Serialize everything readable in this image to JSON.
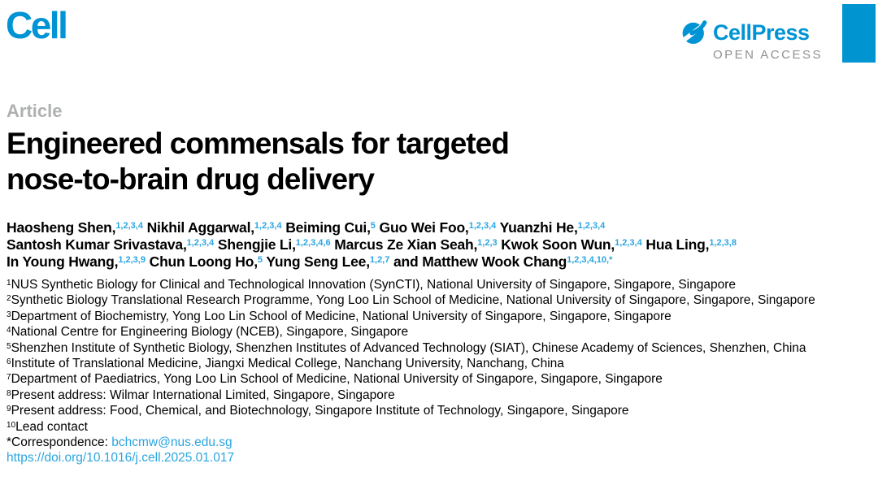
{
  "header": {
    "journal_logo": "Cell",
    "publisher_logo": "CellPress",
    "open_access_label": "OPEN ACCESS"
  },
  "article": {
    "label": "Article",
    "title_line1": "Engineered commensals for targeted",
    "title_line2": "nose-to-brain drug delivery"
  },
  "authors": {
    "lines": [
      [
        {
          "name": "Haosheng Shen,",
          "sup": "1,2,3,4"
        },
        {
          "name": " Nikhil Aggarwal,",
          "sup": "1,2,3,4"
        },
        {
          "name": " Beiming Cui,",
          "sup": "5"
        },
        {
          "name": " Guo Wei Foo,",
          "sup": "1,2,3,4"
        },
        {
          "name": " Yuanzhi He,",
          "sup": "1,2,3,4"
        }
      ],
      [
        {
          "name": "Santosh Kumar Srivastava,",
          "sup": "1,2,3,4"
        },
        {
          "name": " Shengjie Li,",
          "sup": "1,2,3,4,6"
        },
        {
          "name": " Marcus Ze Xian Seah,",
          "sup": "1,2,3"
        },
        {
          "name": " Kwok Soon Wun,",
          "sup": "1,2,3,4"
        },
        {
          "name": " Hua Ling,",
          "sup": "1,2,3,8"
        }
      ],
      [
        {
          "name": "In Young Hwang,",
          "sup": "1,2,3,9"
        },
        {
          "name": " Chun Loong Ho,",
          "sup": "5"
        },
        {
          "name": " Yung Seng Lee,",
          "sup": "1,2,7"
        },
        {
          "name": " and Matthew Wook Chang",
          "sup": "1,2,3,4,10,*"
        }
      ]
    ]
  },
  "affiliations": [
    {
      "sup": "1",
      "text": "NUS Synthetic Biology for Clinical and Technological Innovation (SynCTI), National University of Singapore, Singapore, Singapore"
    },
    {
      "sup": "2",
      "text": "Synthetic Biology Translational Research Programme, Yong Loo Lin School of Medicine, National University of Singapore, Singapore, Singapore"
    },
    {
      "sup": "3",
      "text": "Department of Biochemistry, Yong Loo Lin School of Medicine, National University of Singapore, Singapore, Singapore"
    },
    {
      "sup": "4",
      "text": "National Centre for Engineering Biology (NCEB), Singapore, Singapore"
    },
    {
      "sup": "5",
      "text": "Shenzhen Institute of Synthetic Biology, Shenzhen Institutes of Advanced Technology (SIAT), Chinese Academy of Sciences, Shenzhen, China"
    },
    {
      "sup": "6",
      "text": "Institute of Translational Medicine, Jiangxi Medical College, Nanchang University, Nanchang, China"
    },
    {
      "sup": "7",
      "text": "Department of Paediatrics, Yong Loo Lin School of Medicine, National University of Singapore, Singapore, Singapore"
    },
    {
      "sup": "8",
      "text": "Present address: Wilmar International Limited, Singapore, Singapore"
    },
    {
      "sup": "9",
      "text": "Present address: Food, Chemical, and Biotechnology, Singapore Institute of Technology, Singapore, Singapore"
    },
    {
      "sup": "10",
      "text": "Lead contact"
    }
  ],
  "correspondence": {
    "label": "*Correspondence: ",
    "email": "bchcmw@nus.edu.sg"
  },
  "doi": "https://doi.org/10.1016/j.cell.2025.01.017",
  "colors": {
    "brand_blue": "#0094d4",
    "link_blue": "#2aa5e0",
    "bar_blue": "#0095d0",
    "article_label_gray": "#aeb0b2",
    "open_access_gray": "#8d9093"
  }
}
